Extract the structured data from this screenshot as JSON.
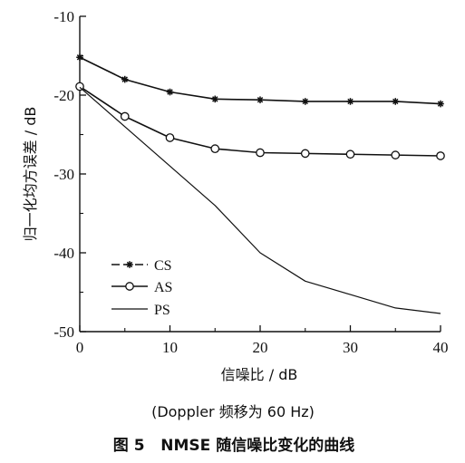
{
  "chart_data": {
    "type": "line",
    "xlabel": "信噪比 / dB",
    "ylabel": "归一化均方误差 / dB",
    "xlim": [
      0,
      40
    ],
    "ylim": [
      -50,
      -10
    ],
    "x_ticks": [
      "0",
      "10",
      "20",
      "30",
      "40"
    ],
    "y_ticks": [
      "-10",
      "-20",
      "-30",
      "-40",
      "-50"
    ],
    "grid": false,
    "legend_position": "bottom-left",
    "series": [
      {
        "name": "CS",
        "marker": "star",
        "style": "dash-star",
        "x": [
          0,
          5,
          10,
          15,
          20,
          25,
          30,
          35,
          40
        ],
        "values": [
          -15.2,
          -18.0,
          -19.6,
          -20.5,
          -20.6,
          -20.8,
          -20.8,
          -20.8,
          -21.1
        ]
      },
      {
        "name": "AS",
        "marker": "circle",
        "style": "solid-circle",
        "x": [
          0,
          5,
          10,
          15,
          20,
          25,
          30,
          35,
          40
        ],
        "values": [
          -18.9,
          -22.7,
          -25.4,
          -26.8,
          -27.3,
          -27.4,
          -27.5,
          -27.6,
          -27.7
        ]
      },
      {
        "name": "PS",
        "marker": "none",
        "style": "solid",
        "x": [
          0,
          5,
          10,
          15,
          20,
          25,
          30,
          35,
          40
        ],
        "values": [
          -19.0,
          -24.0,
          -29.0,
          -34.0,
          -40.0,
          -43.6,
          -45.3,
          -47.0,
          -47.7
        ]
      }
    ]
  },
  "subtitle": "(Doppler 频移为 60 Hz)",
  "caption": "图 5   NMSE 随信噪比变化的曲线"
}
